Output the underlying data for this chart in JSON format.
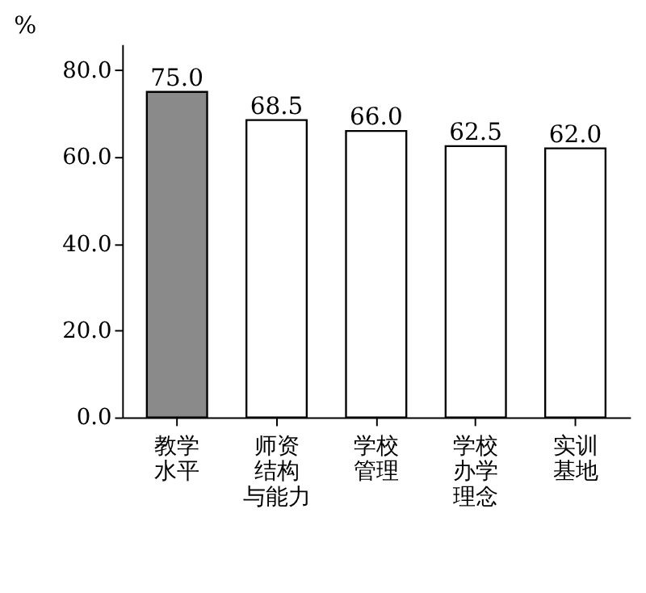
{
  "chart_data": {
    "type": "bar",
    "ylabel": "%",
    "categories": [
      "教学水平",
      "师资结构与能力",
      "学校管理",
      "学校办学理念",
      "实训基地"
    ],
    "values": [
      75.0,
      68.5,
      66.0,
      62.5,
      62.0
    ],
    "colors": [
      "#8a8a8a",
      "#ffffff",
      "#ffffff",
      "#ffffff",
      "#ffffff"
    ],
    "value_labels": [
      "75.0",
      "68.5",
      "66.0",
      "62.5",
      "62.0"
    ],
    "ylim": [
      0,
      86
    ],
    "yticks": [
      {
        "value": 0,
        "label": "0.0"
      },
      {
        "value": 20,
        "label": "20.0"
      },
      {
        "value": 40,
        "label": "40.0"
      },
      {
        "value": 60,
        "label": "60.0"
      },
      {
        "value": 80,
        "label": "80.0"
      }
    ],
    "grid": false
  }
}
